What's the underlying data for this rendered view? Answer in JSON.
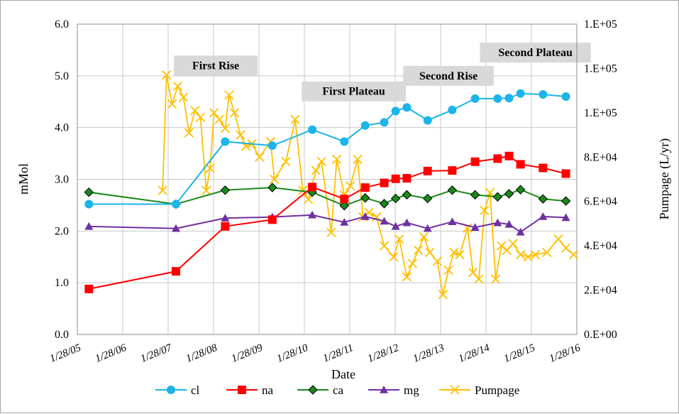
{
  "chart_data": {
    "type": "line",
    "title": "",
    "xlabel": "Date",
    "ylabel": "mMol",
    "y2label": "Pumpage (L/yr)",
    "ylim": [
      0,
      6
    ],
    "y2lim": [
      0,
      140000
    ],
    "xlim": [
      "2005-01-28",
      "2016-01-28"
    ],
    "grid": true,
    "legend_position": "bottom",
    "x_ticks": [
      "1/28/05",
      "1/28/06",
      "1/28/07",
      "1/28/08",
      "1/28/09",
      "1/28/10",
      "1/28/11",
      "1/28/12",
      "1/28/13",
      "1/28/14",
      "1/28/15",
      "1/28/16"
    ],
    "y_ticks": [
      "0.0",
      "1.0",
      "2.0",
      "3.0",
      "4.0",
      "5.0",
      "6.0"
    ],
    "y2_ticks": [
      "0.E+00",
      "2.E+04",
      "4.E+04",
      "6.E+04",
      "8.E+04",
      "1.E+05",
      "1.E+05",
      "1.E+05"
    ],
    "annotations": [
      {
        "text": "First Rise",
        "x": "2008-02-15",
        "y": 5.2
      },
      {
        "text": "First Plateau",
        "x": "2011-03-01",
        "y": 4.7
      },
      {
        "text": "Second Rise",
        "x": "2013-04-01",
        "y": 5.0
      },
      {
        "text": "Second Plateau",
        "x": "2015-03-01",
        "y": 5.45
      }
    ],
    "series": [
      {
        "name": "cl",
        "axis": "left",
        "color": "#1cb4ea",
        "marker": "circle",
        "points": [
          [
            "2005-05-01",
            2.52
          ],
          [
            "2007-04-01",
            2.52
          ],
          [
            "2008-05-01",
            3.73
          ],
          [
            "2009-05-15",
            3.65
          ],
          [
            "2010-04-01",
            3.96
          ],
          [
            "2010-12-15",
            3.73
          ],
          [
            "2011-06-01",
            4.04
          ],
          [
            "2011-11-01",
            4.1
          ],
          [
            "2012-02-01",
            4.32
          ],
          [
            "2012-05-01",
            4.39
          ],
          [
            "2012-10-15",
            4.14
          ],
          [
            "2013-05-01",
            4.34
          ],
          [
            "2013-11-01",
            4.56
          ],
          [
            "2014-05-01",
            4.56
          ],
          [
            "2014-08-01",
            4.57
          ],
          [
            "2014-11-01",
            4.66
          ],
          [
            "2015-05-01",
            4.64
          ],
          [
            "2015-11-01",
            4.6
          ]
        ]
      },
      {
        "name": "na",
        "axis": "left",
        "color": "#ff0000",
        "marker": "square",
        "points": [
          [
            "2005-05-01",
            0.88
          ],
          [
            "2007-04-01",
            1.22
          ],
          [
            "2008-05-01",
            2.09
          ],
          [
            "2009-05-15",
            2.22
          ],
          [
            "2010-04-01",
            2.85
          ],
          [
            "2010-12-15",
            2.62
          ],
          [
            "2011-06-01",
            2.84
          ],
          [
            "2011-11-01",
            2.93
          ],
          [
            "2012-02-01",
            3.01
          ],
          [
            "2012-05-01",
            3.02
          ],
          [
            "2012-10-15",
            3.16
          ],
          [
            "2013-05-01",
            3.17
          ],
          [
            "2013-11-01",
            3.34
          ],
          [
            "2014-05-01",
            3.4
          ],
          [
            "2014-08-01",
            3.45
          ],
          [
            "2014-11-01",
            3.29
          ],
          [
            "2015-05-01",
            3.22
          ],
          [
            "2015-11-01",
            3.11
          ]
        ]
      },
      {
        "name": "ca",
        "axis": "left",
        "color": "#1a8a1a",
        "marker": "diamond",
        "points": [
          [
            "2005-05-01",
            2.75
          ],
          [
            "2007-04-01",
            2.52
          ],
          [
            "2008-05-01",
            2.79
          ],
          [
            "2009-05-15",
            2.84
          ],
          [
            "2010-04-01",
            2.75
          ],
          [
            "2010-12-15",
            2.49
          ],
          [
            "2011-06-01",
            2.64
          ],
          [
            "2011-11-01",
            2.53
          ],
          [
            "2012-02-01",
            2.63
          ],
          [
            "2012-05-01",
            2.7
          ],
          [
            "2012-10-15",
            2.63
          ],
          [
            "2013-05-01",
            2.79
          ],
          [
            "2013-11-01",
            2.7
          ],
          [
            "2014-05-01",
            2.66
          ],
          [
            "2014-08-01",
            2.72
          ],
          [
            "2014-11-01",
            2.8
          ],
          [
            "2015-05-01",
            2.62
          ],
          [
            "2015-11-01",
            2.58
          ]
        ]
      },
      {
        "name": "mg",
        "axis": "left",
        "color": "#7030a0",
        "marker": "triangle",
        "points": [
          [
            "2005-05-01",
            2.09
          ],
          [
            "2007-04-01",
            2.05
          ],
          [
            "2008-05-01",
            2.25
          ],
          [
            "2009-05-15",
            2.27
          ],
          [
            "2010-04-01",
            2.31
          ],
          [
            "2010-12-15",
            2.17
          ],
          [
            "2011-06-01",
            2.28
          ],
          [
            "2011-11-01",
            2.19
          ],
          [
            "2012-02-01",
            2.09
          ],
          [
            "2012-05-01",
            2.16
          ],
          [
            "2012-10-15",
            2.05
          ],
          [
            "2013-05-01",
            2.18
          ],
          [
            "2013-11-01",
            2.07
          ],
          [
            "2014-05-01",
            2.16
          ],
          [
            "2014-08-01",
            2.13
          ],
          [
            "2014-11-01",
            1.98
          ],
          [
            "2015-05-01",
            2.28
          ],
          [
            "2015-11-01",
            2.26
          ]
        ]
      },
      {
        "name": "Pumpage",
        "axis": "right",
        "color": "#ffc000",
        "marker": "x",
        "points": [
          [
            "2006-12-15",
            65000
          ],
          [
            "2007-01-15",
            117000
          ],
          [
            "2007-03-01",
            104000
          ],
          [
            "2007-04-15",
            112000
          ],
          [
            "2007-06-01",
            107000
          ],
          [
            "2007-07-15",
            91000
          ],
          [
            "2007-09-01",
            101000
          ],
          [
            "2007-10-15",
            98000
          ],
          [
            "2007-12-01",
            65000
          ],
          [
            "2008-01-01",
            75000
          ],
          [
            "2008-02-01",
            100000
          ],
          [
            "2008-03-15",
            97000
          ],
          [
            "2008-05-01",
            93000
          ],
          [
            "2008-06-01",
            108000
          ],
          [
            "2008-07-15",
            100000
          ],
          [
            "2008-09-01",
            90000
          ],
          [
            "2008-10-15",
            85000
          ],
          [
            "2008-12-01",
            86000
          ],
          [
            "2009-02-01",
            80000
          ],
          [
            "2009-05-01",
            87000
          ],
          [
            "2009-06-01",
            70000
          ],
          [
            "2009-09-01",
            78000
          ],
          [
            "2009-11-15",
            97000
          ],
          [
            "2010-01-15",
            65000
          ],
          [
            "2010-03-01",
            61000
          ],
          [
            "2010-05-01",
            74000
          ],
          [
            "2010-06-15",
            78000
          ],
          [
            "2010-09-01",
            46000
          ],
          [
            "2010-10-15",
            79000
          ],
          [
            "2010-12-15",
            63000
          ],
          [
            "2011-02-01",
            67000
          ],
          [
            "2011-04-01",
            79000
          ],
          [
            "2011-05-15",
            53000
          ],
          [
            "2011-07-01",
            55000
          ],
          [
            "2011-09-01",
            53000
          ],
          [
            "2011-11-01",
            40000
          ],
          [
            "2012-01-15",
            35000
          ],
          [
            "2012-03-01",
            43000
          ],
          [
            "2012-05-01",
            26000
          ],
          [
            "2012-06-15",
            32000
          ],
          [
            "2012-08-01",
            38000
          ],
          [
            "2012-09-15",
            44000
          ],
          [
            "2012-11-01",
            37000
          ],
          [
            "2013-01-01",
            33000
          ],
          [
            "2013-02-15",
            18000
          ],
          [
            "2013-04-01",
            29000
          ],
          [
            "2013-05-15",
            37000
          ],
          [
            "2013-07-01",
            36000
          ],
          [
            "2013-09-01",
            48000
          ],
          [
            "2013-10-15",
            28000
          ],
          [
            "2013-12-01",
            25000
          ],
          [
            "2014-01-15",
            56000
          ],
          [
            "2014-03-01",
            64000
          ],
          [
            "2014-04-15",
            25000
          ],
          [
            "2014-06-01",
            40000
          ],
          [
            "2014-07-15",
            38000
          ],
          [
            "2014-09-01",
            41000
          ],
          [
            "2014-11-01",
            36000
          ],
          [
            "2015-01-01",
            35000
          ],
          [
            "2015-03-01",
            36000
          ],
          [
            "2015-06-01",
            37000
          ],
          [
            "2015-09-01",
            43000
          ],
          [
            "2015-11-01",
            39000
          ],
          [
            "2016-01-01",
            36000
          ]
        ]
      }
    ]
  }
}
